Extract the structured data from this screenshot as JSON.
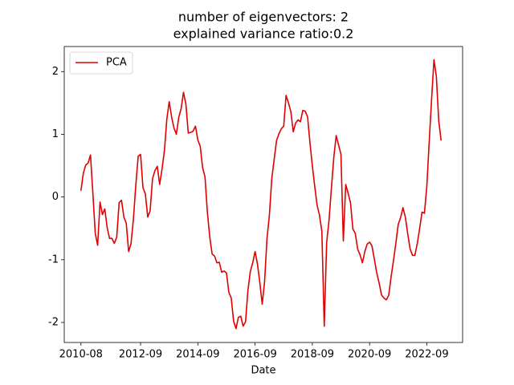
{
  "chart_data": {
    "type": "line",
    "title": [
      "number of eigenvectors: 2",
      "explained variance ratio:0.2"
    ],
    "x_label": "Date",
    "x": [
      "2010-08",
      "2010-09",
      "2010-10",
      "2010-11",
      "2010-12",
      "2011-01",
      "2011-02",
      "2011-03",
      "2011-04",
      "2011-05",
      "2011-06",
      "2011-07",
      "2011-08",
      "2011-09",
      "2011-10",
      "2011-11",
      "2011-12",
      "2012-01",
      "2012-02",
      "2012-03",
      "2012-04",
      "2012-05",
      "2012-06",
      "2012-07",
      "2012-08",
      "2012-09",
      "2012-10",
      "2012-11",
      "2012-12",
      "2013-01",
      "2013-02",
      "2013-03",
      "2013-04",
      "2013-05",
      "2013-06",
      "2013-07",
      "2013-08",
      "2013-09",
      "2013-10",
      "2013-11",
      "2013-12",
      "2014-01",
      "2014-02",
      "2014-03",
      "2014-04",
      "2014-05",
      "2014-06",
      "2014-07",
      "2014-08",
      "2014-09",
      "2014-10",
      "2014-11",
      "2014-12",
      "2015-01",
      "2015-02",
      "2015-03",
      "2015-04",
      "2015-05",
      "2015-06",
      "2015-07",
      "2015-08",
      "2015-09",
      "2015-10",
      "2015-11",
      "2015-12",
      "2016-01",
      "2016-02",
      "2016-03",
      "2016-04",
      "2016-05",
      "2016-06",
      "2016-07",
      "2016-08",
      "2016-09",
      "2016-10",
      "2016-11",
      "2016-12",
      "2017-01",
      "2017-02",
      "2017-03",
      "2017-04",
      "2017-05",
      "2017-06",
      "2017-07",
      "2017-08",
      "2017-09",
      "2017-10",
      "2017-11",
      "2017-12",
      "2018-01",
      "2018-02",
      "2018-03",
      "2018-04",
      "2018-05",
      "2018-06",
      "2018-07",
      "2018-08",
      "2018-09",
      "2018-10",
      "2018-11",
      "2018-12",
      "2019-01",
      "2019-02",
      "2019-03",
      "2019-04",
      "2019-05",
      "2019-06",
      "2019-07",
      "2019-08",
      "2019-09",
      "2019-10",
      "2019-11",
      "2019-12",
      "2020-01",
      "2020-02",
      "2020-03",
      "2020-04",
      "2020-05",
      "2020-06",
      "2020-07",
      "2020-08",
      "2020-09",
      "2020-10",
      "2020-11",
      "2020-12",
      "2021-01",
      "2021-02",
      "2021-03",
      "2021-04",
      "2021-05",
      "2021-06",
      "2021-07",
      "2021-08",
      "2021-09",
      "2021-10",
      "2021-11",
      "2021-12",
      "2022-01",
      "2022-02",
      "2022-03",
      "2022-04",
      "2022-05",
      "2022-06",
      "2022-07",
      "2022-08",
      "2022-09",
      "2022-10",
      "2022-11",
      "2022-12",
      "2023-01",
      "2023-02",
      "2023-03"
    ],
    "series": [
      {
        "name": "PCA",
        "color": "#e00000",
        "values": [
          0.1,
          0.38,
          0.51,
          0.54,
          0.67,
          0.06,
          -0.58,
          -0.77,
          -0.08,
          -0.28,
          -0.19,
          -0.49,
          -0.66,
          -0.66,
          -0.74,
          -0.64,
          -0.09,
          -0.05,
          -0.32,
          -0.42,
          -0.87,
          -0.74,
          -0.35,
          0.19,
          0.65,
          0.68,
          0.15,
          0.05,
          -0.32,
          -0.22,
          0.29,
          0.42,
          0.49,
          0.2,
          0.45,
          0.74,
          1.24,
          1.52,
          1.28,
          1.1,
          1.0,
          1.27,
          1.41,
          1.67,
          1.48,
          1.02,
          1.03,
          1.05,
          1.13,
          0.91,
          0.81,
          0.47,
          0.32,
          -0.24,
          -0.64,
          -0.91,
          -0.94,
          -1.05,
          -1.04,
          -1.2,
          -1.18,
          -1.21,
          -1.52,
          -1.61,
          -1.98,
          -2.1,
          -1.92,
          -1.9,
          -2.06,
          -1.99,
          -1.49,
          -1.19,
          -1.05,
          -0.87,
          -1.07,
          -1.37,
          -1.71,
          -1.34,
          -0.66,
          -0.29,
          0.29,
          0.6,
          0.9,
          1.01,
          1.09,
          1.13,
          1.62,
          1.5,
          1.36,
          1.04,
          1.18,
          1.23,
          1.2,
          1.38,
          1.37,
          1.28,
          0.87,
          0.5,
          0.17,
          -0.13,
          -0.29,
          -0.55,
          -2.06,
          -0.73,
          -0.37,
          0.14,
          0.63,
          0.98,
          0.83,
          0.68,
          -0.7,
          0.2,
          0.06,
          -0.09,
          -0.51,
          -0.58,
          -0.83,
          -0.92,
          -1.05,
          -0.87,
          -0.75,
          -0.72,
          -0.78,
          -0.99,
          -1.21,
          -1.37,
          -1.56,
          -1.61,
          -1.64,
          -1.57,
          -1.28,
          -1.02,
          -0.74,
          -0.44,
          -0.33,
          -0.17,
          -0.32,
          -0.59,
          -0.83,
          -0.93,
          -0.93,
          -0.74,
          -0.5,
          -0.24,
          -0.26,
          0.17,
          0.88,
          1.56,
          2.19,
          1.92,
          1.21,
          0.9
        ]
      }
    ],
    "xlim": [
      "2010-01",
      "2023-12"
    ],
    "xticks": [
      "2010-08",
      "2012-09",
      "2014-09",
      "2016-09",
      "2018-09",
      "2020-09",
      "2022-09"
    ],
    "ylim": [
      -2.32,
      2.4
    ],
    "yticks": [
      -2,
      -1,
      0,
      1,
      2
    ],
    "legend": "upper left",
    "grid": false
  }
}
